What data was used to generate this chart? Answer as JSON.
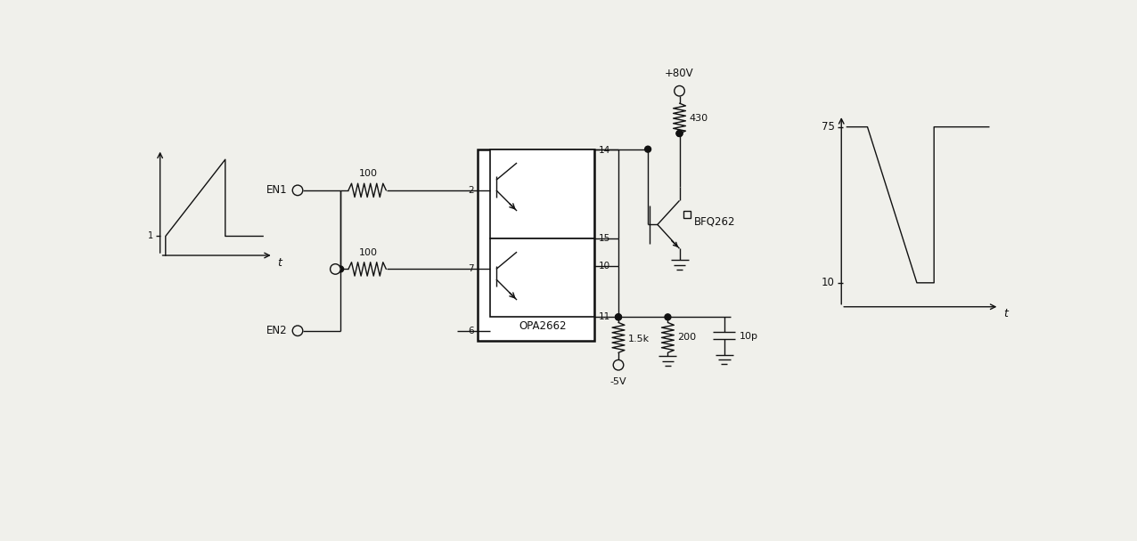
{
  "bg_color": "#f0f0eb",
  "line_color": "#111111",
  "fig_width": 12.76,
  "fig_height": 6.08,
  "ic_label": "OPA2662",
  "bjt_label": "BFQ262",
  "r1_label": "100",
  "r2_label": "100",
  "r3_label": "430",
  "r4_label": "1.5k",
  "r5_label": "200",
  "c1_label": "10p",
  "vcc_label": "+80V",
  "vee_label": "-5V",
  "en1_label": "EN1",
  "en2_label": "EN2",
  "pin2": "2",
  "pin6": "6",
  "pin7": "7",
  "pin10": "10",
  "pin11": "11",
  "pin14": "14",
  "pin15": "15",
  "wf_left_label": "t",
  "wf_right_label": "t",
  "y75": "75",
  "y10": "10"
}
